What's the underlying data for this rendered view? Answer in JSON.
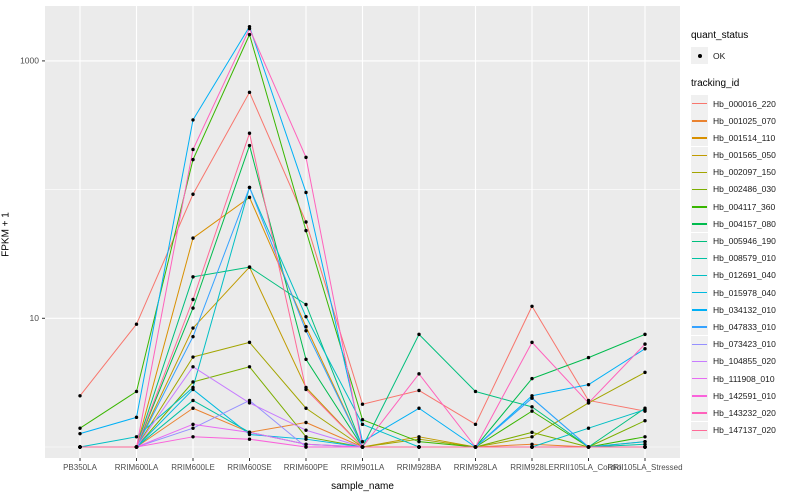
{
  "figure": {
    "background": "#FFFFFF",
    "panel_background": "#EBEBEB",
    "gridline_color": "#FFFFFF",
    "axis_text_color": "#4D4D4D",
    "tick_color": "#333333",
    "point_color": "#000000"
  },
  "axes": {
    "x_title": "sample_name",
    "y_title": "FPKM + 1"
  },
  "legend": {
    "quant_status_title": "quant_status",
    "quant_status_items": [
      {
        "label": "OK",
        "symbol": "point"
      }
    ],
    "tracking_id_title": "tracking_id"
  },
  "chart_data": {
    "type": "line",
    "title": "",
    "xlabel": "sample_name",
    "ylabel": "FPKM + 1",
    "yscale": "log10",
    "ylim": [
      1,
      2000
    ],
    "ytick_labels": [
      "10",
      "1000"
    ],
    "ytick_values": [
      10,
      1000
    ],
    "yminor_values": [
      1,
      100
    ],
    "grid": true,
    "legend_position": "right",
    "point_shape": "filled-circle-black",
    "categories": [
      "PB350LA",
      "RRIM600LA",
      "RRIM600LE",
      "RRIM600SE",
      "RRIM600PE",
      "RRIM901LA",
      "RRIM928BA",
      "RRIM928LA",
      "RRIM928LE",
      "RRII105LA_Control",
      "RRII105LA_Stressed"
    ],
    "series": [
      {
        "name": "Hb_000016_220",
        "color": "#F8766D",
        "values": [
          2.5,
          9.0,
          92,
          570,
          56,
          2.15,
          2.75,
          1.5,
          12.4,
          2.3,
          1.9
        ]
      },
      {
        "name": "Hb_001025_070",
        "color": "#EA8331",
        "values": [
          1,
          1,
          2.0,
          1.3,
          1.55,
          1,
          1,
          1,
          1.05,
          1,
          1.1
        ]
      },
      {
        "name": "Hb_001514_110",
        "color": "#D89000",
        "values": [
          1,
          1,
          42,
          87,
          8.6,
          1,
          1,
          1,
          1,
          1,
          1
        ]
      },
      {
        "name": "Hb_001565_050",
        "color": "#C09B00",
        "values": [
          1,
          1,
          8.4,
          25,
          2.9,
          1,
          1.2,
          1,
          1,
          1,
          1
        ]
      },
      {
        "name": "Hb_002097_150",
        "color": "#A3A500",
        "values": [
          1,
          1,
          5.0,
          6.5,
          2.0,
          1,
          1.15,
          1,
          1.2,
          2.2,
          3.8
        ]
      },
      {
        "name": "Hb_002486_030",
        "color": "#7CAE00",
        "values": [
          1,
          1,
          3.2,
          4.2,
          1.2,
          1,
          1,
          1,
          1.3,
          1,
          1.6
        ]
      },
      {
        "name": "Hb_004117_360",
        "color": "#39B600",
        "values": [
          1.4,
          2.7,
          171,
          1600,
          48,
          1.63,
          1.1,
          1,
          1.9,
          1,
          1.2
        ]
      },
      {
        "name": "Hb_004157_080",
        "color": "#00BB4E",
        "values": [
          1,
          1,
          12,
          220,
          4.8,
          1,
          1,
          1,
          3.4,
          4.95,
          7.5
        ]
      },
      {
        "name": "Hb_005946_190",
        "color": "#00BF7D",
        "values": [
          1,
          1,
          21,
          25,
          12.8,
          1,
          7.5,
          2.7,
          2.05,
          1,
          2.0
        ]
      },
      {
        "name": "Hb_008579_010",
        "color": "#00C1A3",
        "values": [
          1,
          1,
          2.3,
          1.3,
          1.05,
          1,
          1,
          1,
          1,
          1,
          1.05
        ]
      },
      {
        "name": "Hb_012691_040",
        "color": "#00BFC4",
        "values": [
          1,
          1.2,
          2.9,
          104,
          10.3,
          1.5,
          1,
          1,
          1,
          1.4,
          1.95
        ]
      },
      {
        "name": "Hb_015978_040",
        "color": "#00BAE0",
        "values": [
          1,
          1,
          2.8,
          1.25,
          1.15,
          1,
          1,
          1,
          2.4,
          1,
          1.1
        ]
      },
      {
        "name": "Hb_034132_010",
        "color": "#00B0F6",
        "values": [
          1.27,
          1.7,
          348,
          1845,
          95,
          1.1,
          2.0,
          1,
          2.5,
          3.05,
          5.8
        ]
      },
      {
        "name": "Hb_047833_010",
        "color": "#35A2FF",
        "values": [
          1,
          1,
          7.2,
          104,
          8.0,
          1,
          1,
          1,
          2.4,
          1,
          1
        ]
      },
      {
        "name": "Hb_073423_010",
        "color": "#9590FF",
        "values": [
          1,
          1,
          1.4,
          2.3,
          1,
          1,
          1,
          1,
          1,
          1,
          1
        ]
      },
      {
        "name": "Hb_104855_020",
        "color": "#C77CFF",
        "values": [
          1,
          1,
          4.2,
          2.2,
          1.35,
          1,
          1,
          1,
          1,
          1,
          1
        ]
      },
      {
        "name": "Hb_111908_010",
        "color": "#E76BF3",
        "values": [
          1,
          1,
          1.5,
          1.3,
          1.05,
          1,
          1,
          1,
          1,
          1,
          1
        ]
      },
      {
        "name": "Hb_142591_010",
        "color": "#FA62DB",
        "values": [
          1,
          1,
          1.2,
          1.15,
          1,
          1,
          1,
          1,
          1,
          1,
          1
        ]
      },
      {
        "name": "Hb_143232_020",
        "color": "#FF62BC",
        "values": [
          1,
          1,
          205,
          1780,
          178,
          1,
          3.7,
          1,
          6.5,
          2.2,
          6.3
        ]
      },
      {
        "name": "Hb_147137_020",
        "color": "#FF6A98",
        "values": [
          1,
          1,
          14,
          274,
          2.8,
          1,
          1,
          1,
          1,
          1,
          1
        ]
      }
    ]
  }
}
